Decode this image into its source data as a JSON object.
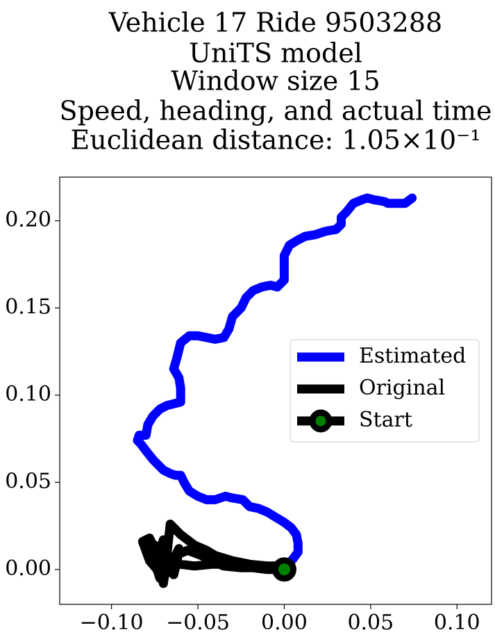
{
  "chart_data": {
    "type": "line",
    "title_lines": [
      "Vehicle 17 Ride 9503288",
      "UniTS model",
      "Window size 15",
      "Speed, heading, and actual time",
      "Euclidean distance: 1.05×10⁻¹"
    ],
    "xlabel": "",
    "ylabel": "",
    "xlim": [
      -0.13,
      0.12
    ],
    "ylim": [
      -0.02,
      0.225
    ],
    "xticks": [
      -0.1,
      -0.05,
      0.0,
      0.05,
      0.1
    ],
    "xtick_labels": [
      "−0.10",
      "−0.05",
      "0.00",
      "0.05",
      "0.10"
    ],
    "yticks": [
      0.0,
      0.05,
      0.1,
      0.15,
      0.2
    ],
    "ytick_labels": [
      "0.00",
      "0.05",
      "0.10",
      "0.15",
      "0.20"
    ],
    "grid": false,
    "legend_position": "center-right",
    "series": [
      {
        "name": "Estimated",
        "color": "#0000ff",
        "x": [
          0.0,
          0.005,
          0.008,
          0.008,
          0.007,
          0.004,
          0.0,
          -0.005,
          -0.01,
          -0.015,
          -0.02,
          -0.024,
          -0.03,
          -0.034,
          -0.04,
          -0.045,
          -0.05,
          -0.055,
          -0.058,
          -0.06,
          -0.063,
          -0.066,
          -0.07,
          -0.076,
          -0.08,
          -0.083,
          -0.085,
          -0.084,
          -0.08,
          -0.079,
          -0.076,
          -0.072,
          -0.068,
          -0.06,
          -0.06,
          -0.061,
          -0.064,
          -0.062,
          -0.06,
          -0.055,
          -0.05,
          -0.045,
          -0.04,
          -0.035,
          -0.032,
          -0.03,
          -0.025,
          -0.022,
          -0.018,
          -0.013,
          -0.008,
          -0.004,
          0.0,
          0.0,
          0.0,
          0.003,
          0.008,
          0.012,
          0.018,
          0.024,
          0.03,
          0.033,
          0.033,
          0.036,
          0.04,
          0.045,
          0.048,
          0.052,
          0.058,
          0.06,
          0.066,
          0.07,
          0.074
        ],
        "y": [
          0.0,
          0.006,
          0.01,
          0.015,
          0.02,
          0.024,
          0.027,
          0.03,
          0.033,
          0.035,
          0.036,
          0.04,
          0.041,
          0.042,
          0.04,
          0.04,
          0.042,
          0.045,
          0.05,
          0.054,
          0.054,
          0.055,
          0.057,
          0.063,
          0.068,
          0.072,
          0.074,
          0.077,
          0.077,
          0.083,
          0.088,
          0.092,
          0.094,
          0.096,
          0.104,
          0.11,
          0.115,
          0.122,
          0.13,
          0.134,
          0.134,
          0.133,
          0.132,
          0.133,
          0.138,
          0.145,
          0.15,
          0.156,
          0.16,
          0.162,
          0.163,
          0.162,
          0.166,
          0.172,
          0.18,
          0.186,
          0.189,
          0.191,
          0.192,
          0.194,
          0.195,
          0.198,
          0.202,
          0.205,
          0.21,
          0.212,
          0.213,
          0.212,
          0.211,
          0.21,
          0.21,
          0.21,
          0.213
        ]
      },
      {
        "name": "Original",
        "color": "#000000",
        "x": [
          0.0,
          -0.01,
          -0.018,
          -0.025,
          -0.035,
          -0.04,
          -0.048,
          -0.056,
          -0.063,
          -0.068,
          -0.072,
          -0.078,
          -0.082,
          -0.078,
          -0.074,
          -0.072,
          -0.07,
          -0.068,
          -0.07,
          -0.072,
          -0.068,
          -0.064,
          -0.062,
          -0.061,
          -0.064,
          -0.068,
          -0.071,
          -0.073,
          -0.075,
          -0.077,
          -0.075,
          -0.072,
          -0.068,
          -0.066,
          -0.06,
          -0.052,
          -0.045,
          -0.04,
          -0.03,
          -0.02,
          -0.01,
          0.0,
          -0.01,
          -0.02,
          -0.03,
          -0.042,
          -0.052,
          -0.06,
          -0.066,
          -0.07,
          -0.072,
          -0.074,
          -0.071,
          -0.068,
          -0.07,
          -0.072,
          -0.074
        ],
        "y": [
          0.0,
          0.0,
          0.001,
          0.001,
          0.002,
          0.004,
          0.008,
          0.011,
          0.008,
          0.003,
          -0.002,
          0.005,
          0.016,
          0.018,
          0.01,
          0.0,
          -0.008,
          0.005,
          0.017,
          0.01,
          0.002,
          -0.003,
          0.005,
          0.012,
          0.006,
          -0.002,
          0.0,
          0.008,
          0.014,
          0.012,
          0.004,
          -0.005,
          0.008,
          0.026,
          0.02,
          0.014,
          0.011,
          0.008,
          0.005,
          0.003,
          0.002,
          0.002,
          0.002,
          0.003,
          0.003,
          0.003,
          0.002,
          0.003,
          0.006,
          0.008,
          0.01,
          0.012,
          0.006,
          -0.002,
          -0.004,
          -0.002,
          0.002
        ]
      }
    ],
    "start_point": {
      "name": "Start",
      "x": 0.0,
      "y": 0.0,
      "marker_edge_color": "#000000",
      "marker_face_color": "#008000"
    }
  }
}
